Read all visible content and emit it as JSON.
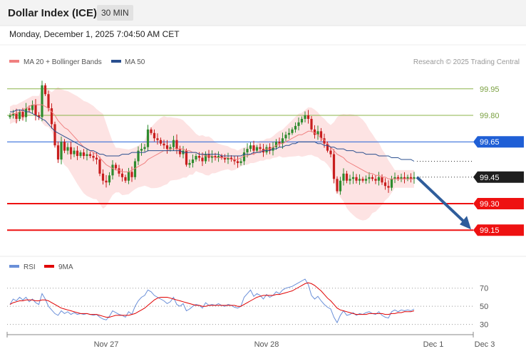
{
  "header": {
    "title": "Dollar Index (ICE)",
    "interval": "30 MIN",
    "timestamp": "Monday, December 1, 2025 7:04:50 AM CET"
  },
  "legend": {
    "ma20_label": "MA 20 + Bollinger Bands",
    "ma50_label": "MA 50",
    "credit": "Research © 2025 Trading Central",
    "ma20_color": "#f08080",
    "ma50_color": "#2a4f8f"
  },
  "rsi_legend": {
    "rsi_label": "RSI",
    "ma9_label": "9MA",
    "rsi_color": "#6a8fd8",
    "ma9_color": "#e00000"
  },
  "colors": {
    "up": "#2e8b2e",
    "down": "#c81e1e",
    "band_fill": "#fde0e0",
    "support": "#ee1111",
    "resistance_blue": "#1f5fd6",
    "target_green": "#8bb34a",
    "arrow": "#2f5d9b"
  },
  "chart_data": [
    {
      "type": "candlestick",
      "title": "Dollar Index (ICE)",
      "interval": "30 MIN",
      "ylim": [
        99.05,
        100.05
      ],
      "x_ticks": [
        {
          "label": "Nov 27",
          "index": 30
        },
        {
          "label": "Nov 28",
          "index": 80
        },
        {
          "label": "Dec 1",
          "index": 132
        },
        {
          "label": "Dec 3",
          "index": 148
        }
      ],
      "levels": [
        {
          "value": 99.95,
          "label": "99.95",
          "style": "target"
        },
        {
          "value": 99.8,
          "label": "99.80",
          "style": "target"
        },
        {
          "value": 99.65,
          "label": "99.65",
          "style": "resistance"
        },
        {
          "value": 99.45,
          "label": "99.45",
          "style": "current"
        },
        {
          "value": 99.3,
          "label": "99.30",
          "style": "support"
        },
        {
          "value": 99.15,
          "label": "99.15",
          "style": "support"
        }
      ],
      "close": [
        99.8,
        99.81,
        99.78,
        99.82,
        99.79,
        99.84,
        99.83,
        99.86,
        99.8,
        99.79,
        99.97,
        99.92,
        99.84,
        99.75,
        99.63,
        99.55,
        99.65,
        99.6,
        99.62,
        99.58,
        99.6,
        99.57,
        99.59,
        99.57,
        99.58,
        99.57,
        99.56,
        99.55,
        99.47,
        99.43,
        99.42,
        99.46,
        99.52,
        99.5,
        99.47,
        99.45,
        99.43,
        99.48,
        99.45,
        99.54,
        99.6,
        99.61,
        99.62,
        99.72,
        99.7,
        99.67,
        99.66,
        99.64,
        99.63,
        99.61,
        99.62,
        99.66,
        99.61,
        99.58,
        99.6,
        99.52,
        99.53,
        99.55,
        99.57,
        99.56,
        99.54,
        99.58,
        99.56,
        99.57,
        99.56,
        99.57,
        99.56,
        99.55,
        99.56,
        99.55,
        99.54,
        99.53,
        99.54,
        99.59,
        99.61,
        99.63,
        99.6,
        99.62,
        99.61,
        99.59,
        99.62,
        99.6,
        99.62,
        99.65,
        99.64,
        99.67,
        99.69,
        99.7,
        99.72,
        99.74,
        99.76,
        99.78,
        99.8,
        99.78,
        99.72,
        99.69,
        99.71,
        99.67,
        99.64,
        99.6,
        99.58,
        99.44,
        99.37,
        99.43,
        99.47,
        99.43,
        99.44,
        99.45,
        99.43,
        99.44,
        99.43,
        99.44,
        99.45,
        99.44,
        99.43,
        99.45,
        99.42,
        99.4,
        99.39,
        99.44,
        99.45,
        99.44,
        99.45,
        99.44,
        99.45,
        99.44,
        99.45
      ],
      "ma20": [
        99.8,
        99.81,
        99.81,
        99.82,
        99.83,
        99.84,
        99.85,
        99.86,
        99.86,
        99.86,
        99.86,
        99.85,
        99.84,
        99.82,
        99.8,
        99.77,
        99.75,
        99.73,
        99.72,
        99.7,
        99.68,
        99.66,
        99.64,
        99.62,
        99.61,
        99.6,
        99.59,
        99.58,
        99.56,
        99.54,
        99.52,
        99.51,
        99.5,
        99.49,
        99.49,
        99.48,
        99.48,
        99.48,
        99.49,
        99.5,
        99.51,
        99.52,
        99.53,
        99.55,
        99.56,
        99.57,
        99.58,
        99.59,
        99.6,
        99.6,
        99.61,
        99.61,
        99.61,
        99.61,
        99.61,
        99.6,
        99.6,
        99.59,
        99.59,
        99.58,
        99.58,
        99.57,
        99.57,
        99.57,
        99.56,
        99.56,
        99.56,
        99.56,
        99.56,
        99.55,
        99.55,
        99.55,
        99.56,
        99.57,
        99.57,
        99.58,
        99.58,
        99.59,
        99.6,
        99.6,
        99.61,
        99.61,
        99.62,
        99.63,
        99.64,
        99.64,
        99.65,
        99.66,
        99.67,
        99.68,
        99.69,
        99.69,
        99.7,
        99.71,
        99.71,
        99.7,
        99.69,
        99.67,
        99.66,
        99.64,
        99.62,
        99.6,
        99.58,
        99.57,
        99.56,
        99.54,
        99.53,
        99.52,
        99.51,
        99.5,
        99.49,
        99.48,
        99.47,
        99.47,
        99.46,
        99.46,
        99.45,
        99.45,
        99.44,
        99.44,
        99.44,
        99.44,
        99.44,
        99.44,
        99.44,
        99.44,
        99.44
      ],
      "ma50": [
        99.82,
        99.82,
        99.83,
        99.83,
        99.83,
        99.82,
        99.82,
        99.81,
        99.8,
        99.79,
        99.78,
        99.77,
        99.75,
        99.73,
        99.71,
        99.7,
        99.69,
        99.68,
        99.67,
        99.66,
        99.65,
        99.64,
        99.63,
        99.62,
        99.61,
        99.6,
        99.6,
        99.59,
        99.58,
        99.58,
        99.57,
        99.57,
        99.57,
        99.57,
        99.57,
        99.58,
        99.58,
        99.58,
        99.59,
        99.59,
        99.59,
        99.59,
        99.59,
        99.6,
        99.6,
        99.6,
        99.6,
        99.6,
        99.6,
        99.6,
        99.6,
        99.6,
        99.6,
        99.6,
        99.59,
        99.59,
        99.59,
        99.59,
        99.59,
        99.58,
        99.58,
        99.58,
        99.58,
        99.58,
        99.58,
        99.58,
        99.57,
        99.57,
        99.57,
        99.57,
        99.57,
        99.57,
        99.57,
        99.58,
        99.58,
        99.58,
        99.59,
        99.59,
        99.59,
        99.6,
        99.6,
        99.6,
        99.61,
        99.61,
        99.62,
        99.62,
        99.63,
        99.63,
        99.64,
        99.64,
        99.65,
        99.65,
        99.65,
        99.65,
        99.65,
        99.65,
        99.64,
        99.64,
        99.63,
        99.63,
        99.62,
        99.62,
        99.61,
        99.61,
        99.61,
        99.6,
        99.6,
        99.6,
        99.59,
        99.59,
        99.59,
        99.58,
        99.58,
        99.58,
        99.58,
        99.57,
        99.57,
        99.57,
        99.57,
        99.56,
        99.56,
        99.56,
        99.55,
        99.55,
        99.55,
        99.55,
        99.54
      ]
    },
    {
      "type": "line",
      "title": "RSI",
      "ylim": [
        25,
        80
      ],
      "y_ticks": [
        70,
        50,
        30
      ],
      "series": [
        {
          "name": "RSI",
          "values": [
            52,
            58,
            56,
            60,
            57,
            60,
            55,
            58,
            54,
            52,
            64,
            58,
            50,
            46,
            42,
            40,
            45,
            42,
            44,
            41,
            43,
            41,
            42,
            41,
            42,
            41,
            40,
            41,
            38,
            36,
            35,
            39,
            45,
            43,
            41,
            40,
            38,
            44,
            41,
            50,
            56,
            60,
            62,
            68,
            66,
            62,
            60,
            58,
            56,
            53,
            55,
            60,
            52,
            50,
            53,
            45,
            47,
            50,
            52,
            51,
            48,
            54,
            51,
            52,
            51,
            53,
            51,
            50,
            52,
            51,
            49,
            48,
            50,
            60,
            64,
            68,
            61,
            64,
            62,
            58,
            63,
            60,
            62,
            66,
            64,
            68,
            70,
            71,
            72,
            74,
            76,
            78,
            80,
            74,
            62,
            58,
            61,
            56,
            52,
            49,
            47,
            38,
            32,
            40,
            45,
            40,
            41,
            43,
            40,
            42,
            41,
            43,
            44,
            42,
            41,
            44,
            40,
            38,
            37,
            44,
            46,
            44,
            46,
            45,
            46,
            45,
            47
          ]
        },
        {
          "name": "9MA",
          "values": [
            52,
            54,
            55,
            56,
            56,
            57,
            57,
            57,
            56,
            56,
            57,
            57,
            56,
            54,
            52,
            50,
            48,
            47,
            46,
            45,
            44,
            43,
            42,
            42,
            42,
            41,
            41,
            41,
            40,
            39,
            38,
            38,
            39,
            40,
            40,
            40,
            40,
            40,
            41,
            42,
            44,
            46,
            48,
            51,
            54,
            57,
            59,
            60,
            60,
            60,
            59,
            58,
            57,
            56,
            55,
            54,
            53,
            52,
            51,
            51,
            50,
            50,
            51,
            51,
            51,
            51,
            51,
            51,
            51,
            51,
            51,
            50,
            50,
            52,
            54,
            56,
            58,
            60,
            61,
            62,
            62,
            62,
            62,
            63,
            63,
            64,
            65,
            66,
            67,
            69,
            71,
            73,
            75,
            76,
            75,
            73,
            70,
            67,
            63,
            59,
            56,
            52,
            48,
            46,
            45,
            44,
            43,
            42,
            41,
            41,
            41,
            41,
            42,
            42,
            42,
            42,
            42,
            41,
            41,
            42,
            42,
            43,
            43,
            44,
            44,
            44,
            45
          ]
        }
      ]
    }
  ]
}
